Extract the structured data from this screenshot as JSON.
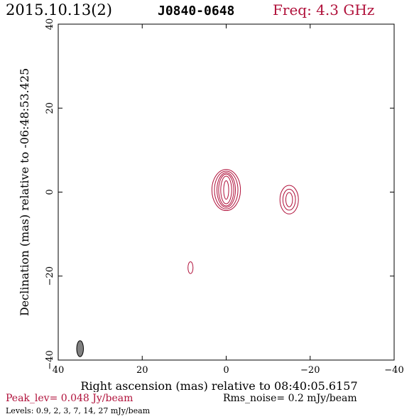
{
  "header": {
    "date": "2015.10.13(2)",
    "source": "J0840-0648",
    "freq": "Freq: 4.3 GHz"
  },
  "footer": {
    "peak": "Peak_lev=  0.048 Jy/beam",
    "rms": "Rms_noise=   0.2 mJy/beam",
    "levels": "Levels: 0.9,    2,    3,    7,   14,   27 mJy/beam"
  },
  "colors": {
    "contour": "#b0103a",
    "beam_fill": "#808080",
    "frame": "#000000"
  },
  "chart_data": {
    "type": "contour",
    "xlabel": "Right ascension (mas) relative to 08:40:05.6157",
    "ylabel": "Declination (mas) relative to -06:48:53.425",
    "xlim": [
      40,
      -40
    ],
    "ylim": [
      -40,
      40
    ],
    "xticks": [
      40,
      20,
      0,
      -20,
      -40
    ],
    "yticks": [
      -40,
      -20,
      0,
      20,
      40
    ],
    "xtick_labels": [
      "40",
      "20",
      "0",
      "−20",
      "−40"
    ],
    "ytick_labels": [
      "−40",
      "−20",
      "0",
      "20",
      "40"
    ],
    "components": [
      {
        "x": 0,
        "y": 0.5,
        "contours": [
          [
            0.6,
            2.2
          ],
          [
            1.3,
            3.3
          ],
          [
            1.8,
            3.8
          ],
          [
            2.2,
            4.1
          ],
          [
            2.8,
            4.5
          ],
          [
            3.4,
            4.9
          ]
        ]
      },
      {
        "x": -15,
        "y": -1.8,
        "contours": [
          [
            0.8,
            1.7
          ],
          [
            1.5,
            2.5
          ],
          [
            2.2,
            3.4
          ]
        ]
      },
      {
        "x": 8.5,
        "y": -18,
        "contours": [
          [
            0.6,
            1.4
          ]
        ]
      }
    ],
    "beam": {
      "x": 34.8,
      "y": -37.3,
      "major": 1.9,
      "minor": 0.8
    }
  }
}
